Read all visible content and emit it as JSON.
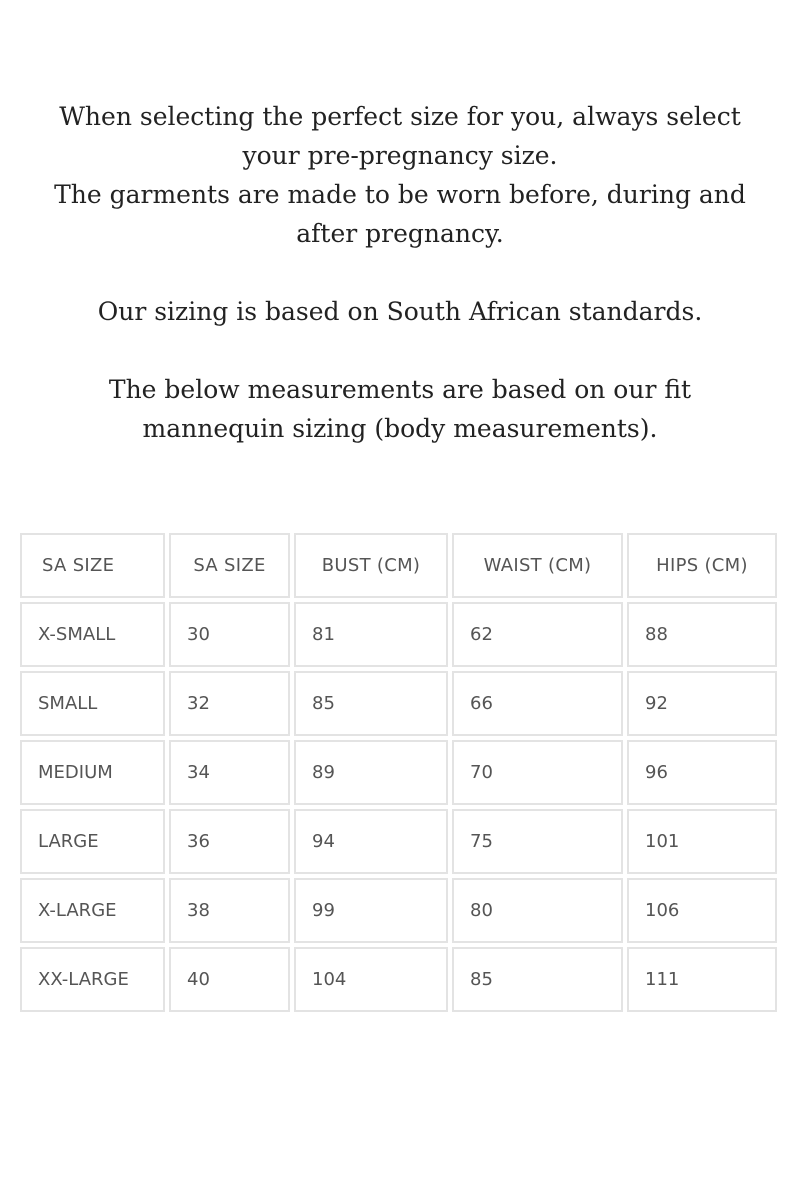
{
  "intro": {
    "line1": "When selecting the perfect size for you, always select",
    "line2": "your pre-pregnancy size.",
    "line3": "The garments are made to be worn before, during and",
    "line4": "after pregnancy.",
    "line5": "Our sizing is based on South African standards.",
    "line6": "The below measurements are based on our fit",
    "line7": "mannequin sizing (body measurements)."
  },
  "table": {
    "headers": [
      "SA SIZE",
      "SA SIZE",
      "BUST (CM)",
      "WAIST (CM)",
      "HIPS (CM)"
    ],
    "rows": [
      [
        "X-SMALL",
        "30",
        "81",
        "62",
        "88"
      ],
      [
        "SMALL",
        "32",
        "85",
        "66",
        "92"
      ],
      [
        "MEDIUM",
        "34",
        "89",
        "70",
        "96"
      ],
      [
        "LARGE",
        "36",
        "94",
        "75",
        "101"
      ],
      [
        "X-LARGE",
        "38",
        "99",
        "80",
        "106"
      ],
      [
        "XX-LARGE",
        "40",
        "104",
        "85",
        "111"
      ]
    ]
  }
}
